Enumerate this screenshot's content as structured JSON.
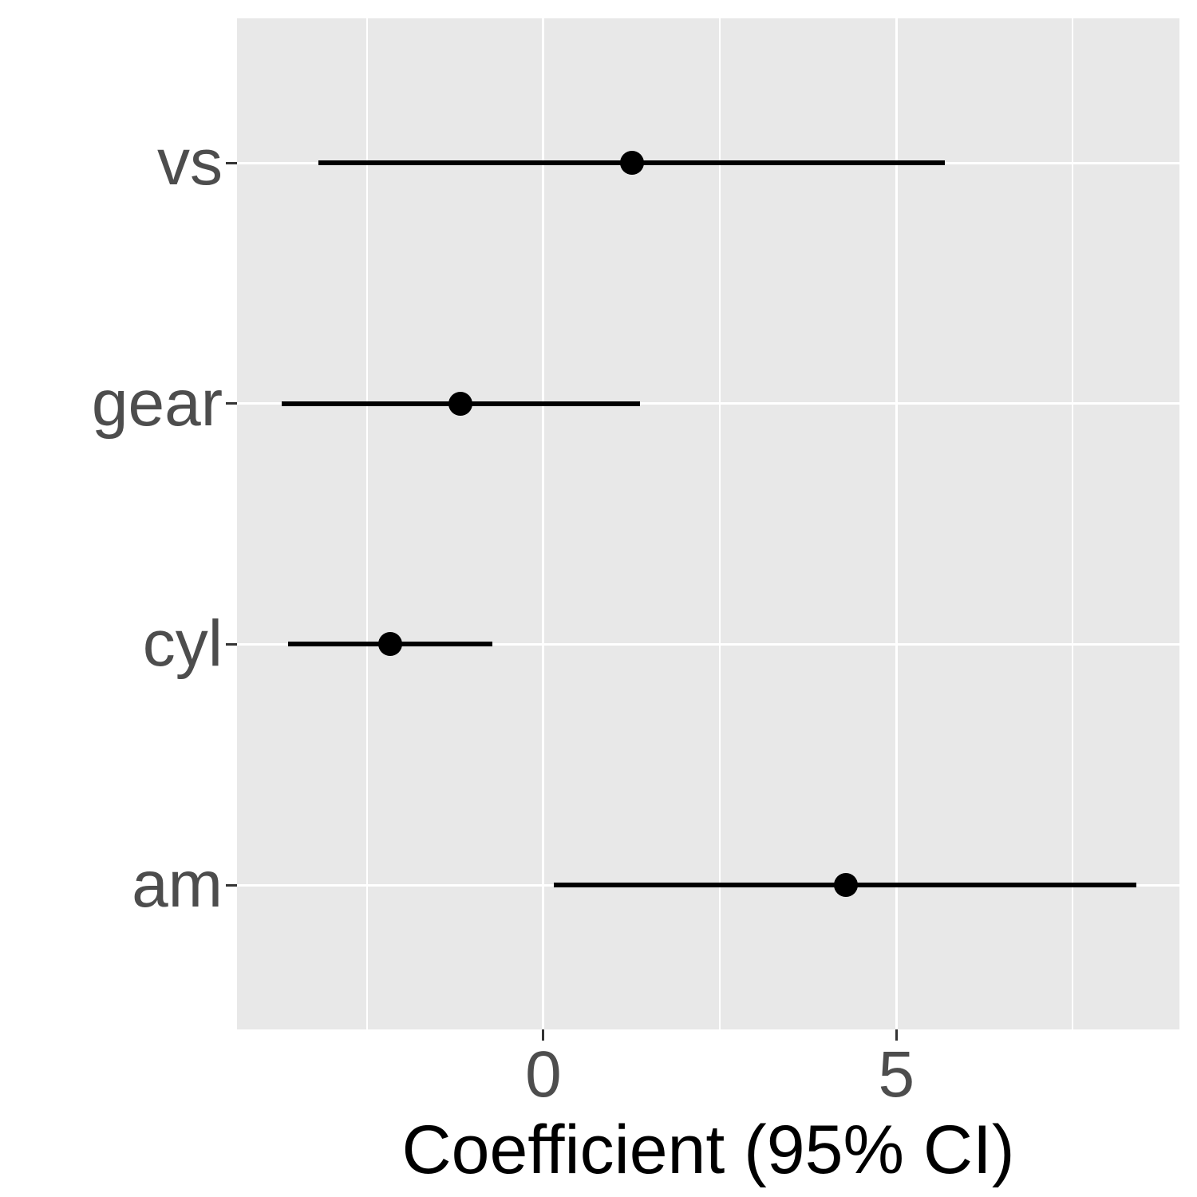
{
  "figure": {
    "xlabel": "Coefficient (95% CI)"
  },
  "chart_data": {
    "type": "pointrange",
    "title": "",
    "xlabel": "Coefficient (95% CI)",
    "ylabel": "",
    "categories": [
      "vs",
      "gear",
      "cyl",
      "am"
    ],
    "series": [
      {
        "name": "coefficients",
        "points": [
          {
            "term": "vs",
            "estimate": 1.25,
            "ci_low": -3.19,
            "ci_high": 5.69
          },
          {
            "term": "gear",
            "estimate": -1.17,
            "ci_low": -3.71,
            "ci_high": 1.37
          },
          {
            "term": "cyl",
            "estimate": -2.17,
            "ci_low": -3.62,
            "ci_high": -0.72
          },
          {
            "term": "am",
            "estimate": 4.28,
            "ci_low": 0.15,
            "ci_high": 8.4
          }
        ]
      }
    ],
    "xlim": [
      -4.34,
      9.01
    ],
    "x_major_ticks": [
      0,
      5
    ],
    "x_tick_labels": [
      "0",
      "5"
    ],
    "x_minor_ticks": [
      -2.5,
      2.5,
      7.5
    ],
    "grid": "white major and minor gridlines on grey panel",
    "legend": "none",
    "style": {
      "panel_background": "#e8e8e8",
      "gridline_color": "#ffffff",
      "point_color": "#000000",
      "ci_color": "#000000",
      "axis_text_color": "#4d4d4d",
      "tick_mark_color": "#333333",
      "axis_title_color": "#000000"
    }
  }
}
